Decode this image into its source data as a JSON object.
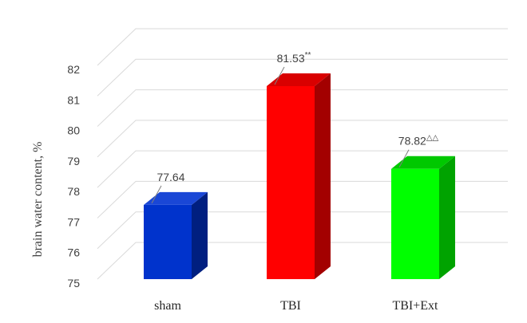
{
  "chart_data": {
    "type": "bar",
    "style": "3d-column",
    "ylabel": "brain water content, %",
    "xlabel": "",
    "ylim": [
      75,
      82
    ],
    "yticks": [
      75,
      76,
      77,
      78,
      79,
      80,
      81,
      82
    ],
    "grid": true,
    "categories": [
      "sham",
      "TBI",
      "TBI+Ext"
    ],
    "values": [
      77.64,
      81.53,
      78.82
    ],
    "data_labels": [
      {
        "text": "77.64",
        "suffix": ""
      },
      {
        "text": "81.53",
        "suffix": "**"
      },
      {
        "text": "78.82",
        "suffix": "△△"
      }
    ],
    "colors": [
      {
        "front": "#0033cc",
        "side": "#001f80",
        "top": "#1a47d6"
      },
      {
        "front": "#ff0000",
        "side": "#a30000",
        "top": "#d90000"
      },
      {
        "front": "#00ff00",
        "side": "#00a300",
        "top": "#00c800"
      }
    ]
  }
}
